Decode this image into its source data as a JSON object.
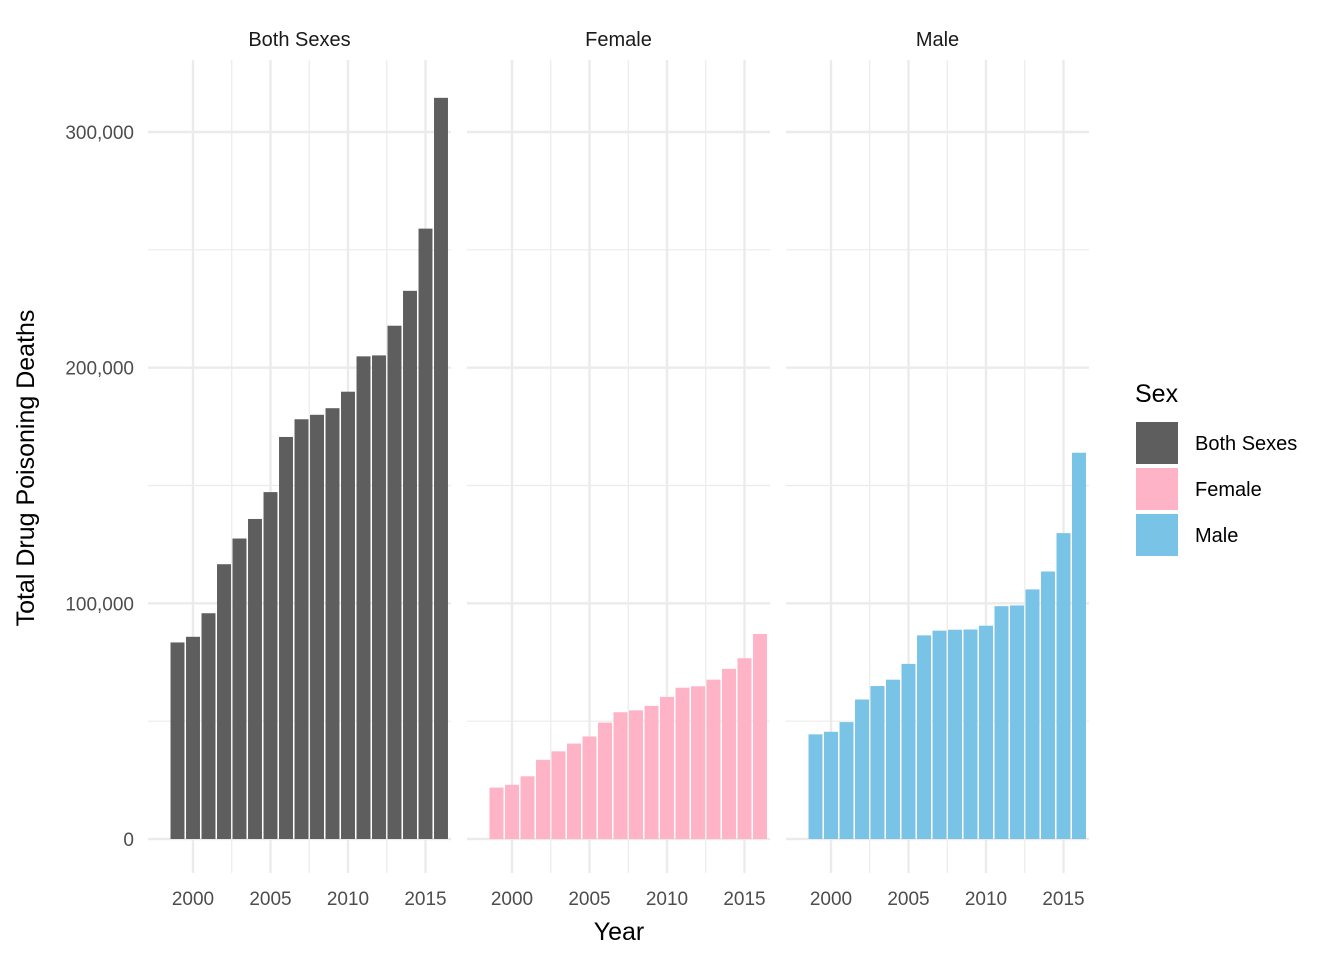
{
  "chart_data": {
    "type": "bar",
    "facet_by": "Sex",
    "xlabel": "Year",
    "ylabel": "Total Drug Poisoning Deaths",
    "ylim": [
      0,
      330000
    ],
    "yticks": [
      0,
      100000,
      200000,
      300000
    ],
    "ytick_labels": [
      "0",
      "100,000",
      "200,000",
      "300,000"
    ],
    "xticks": [
      2000,
      2005,
      2010,
      2015
    ],
    "xtick_labels": [
      "2000",
      "2005",
      "2010",
      "2015"
    ],
    "xlim": [
      1998,
      2016
    ],
    "grid": true,
    "legend": {
      "title": "Sex",
      "placement": "right",
      "entries": [
        "Both Sexes",
        "Female",
        "Male"
      ]
    },
    "x": [
      1999,
      2000,
      2001,
      2002,
      2003,
      2004,
      2005,
      2006,
      2007,
      2008,
      2009,
      2010,
      2011,
      2012,
      2013,
      2014,
      2015,
      2016
    ],
    "series": [
      {
        "name": "Both Sexes",
        "color": "#5e5e5e",
        "values": [
          83400,
          85800,
          95800,
          116600,
          127500,
          135800,
          147200,
          170600,
          178100,
          180000,
          182800,
          189800,
          204800,
          205200,
          217800,
          232600,
          259000,
          314500
        ]
      },
      {
        "name": "Female",
        "color": "#ffb3c6",
        "values": [
          21800,
          23000,
          26600,
          33600,
          37200,
          40500,
          43500,
          49400,
          53800,
          54600,
          56500,
          60300,
          64200,
          64800,
          67600,
          72200,
          76700,
          87000
        ]
      },
      {
        "name": "Male",
        "color": "#78c3e6",
        "values": [
          44400,
          45500,
          49600,
          59200,
          64900,
          67600,
          74300,
          86400,
          88400,
          88800,
          88900,
          90500,
          98800,
          99100,
          105900,
          113500,
          129800,
          163900
        ]
      }
    ]
  }
}
